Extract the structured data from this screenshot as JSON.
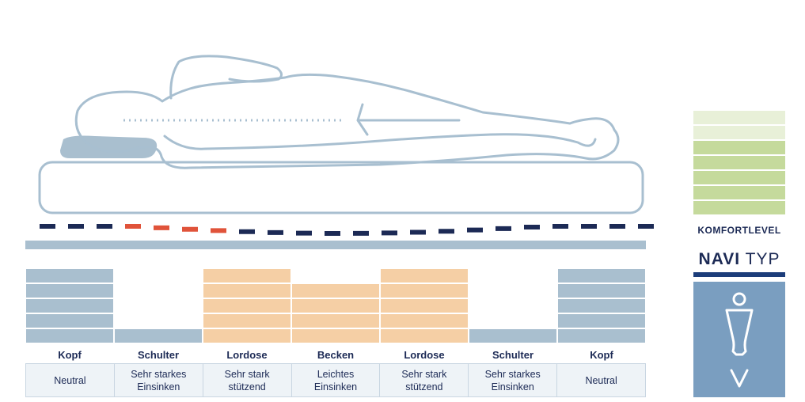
{
  "zones": [
    {
      "label": "Kopf",
      "description": "Neutral",
      "level": 5,
      "color": "#a9bfcf"
    },
    {
      "label": "Schulter",
      "description": "Sehr starkes\nEinsinken",
      "level": 1,
      "color": "#a9bfcf"
    },
    {
      "label": "Lordose",
      "description": "Sehr stark\nstützend",
      "level": 5,
      "color": "#f5cfa5"
    },
    {
      "label": "Becken",
      "description": "Leichtes\nEinsinken",
      "level": 4,
      "color": "#f5cfa5"
    },
    {
      "label": "Lordose",
      "description": "Sehr stark\nstützend",
      "level": 5,
      "color": "#f5cfa5"
    },
    {
      "label": "Schulter",
      "description": "Sehr starkes\nEinsinken",
      "level": 1,
      "color": "#a9bfcf"
    },
    {
      "label": "Kopf",
      "description": "Neutral",
      "level": 5,
      "color": "#a9bfcf"
    }
  ],
  "komfort": {
    "label": "KOMFORTLEVEL",
    "total": 7,
    "filled": 5,
    "filled_color": "#c5da9c",
    "empty_color": "#e8f0d8"
  },
  "navi": {
    "title_bold": "NAVI",
    "title_rest": "TYP"
  },
  "colors": {
    "outline": "#a8bfd0",
    "dash_dark": "#1c2a55",
    "dash_accent": "#e0533a",
    "base": "#a9bfcf"
  }
}
